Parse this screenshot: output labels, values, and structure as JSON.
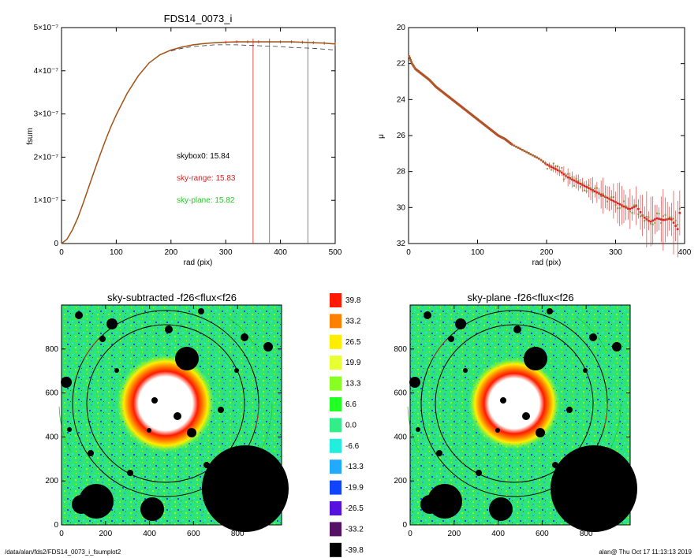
{
  "footer": {
    "path": "/data/alan/fds2/FDS14_0073_i_fsumplot2",
    "stamp": "alan@  Thu Oct 17 11:13:13 2019"
  },
  "colors": {
    "data_red": "#dd2222",
    "sky_plane_green": "#22cc22",
    "model_olive": "#7a8a22",
    "dashed_grey": "#333333",
    "mask_black": "#000000"
  },
  "chart_data": [
    {
      "id": "fsum",
      "type": "line",
      "title": "FDS14_0073_i",
      "xlabel": "rad (pix)",
      "ylabel": "fsum",
      "xlim": [
        0,
        500
      ],
      "ylim": [
        0,
        5e-07
      ],
      "xticks": [
        "0",
        "100",
        "200",
        "300",
        "400",
        "500"
      ],
      "yticks": [
        "0",
        "1×10⁻⁷",
        "2×10⁻⁷",
        "3×10⁻⁷",
        "4×10⁻⁷",
        "5×10⁻⁷"
      ],
      "vlines": [
        {
          "x": 350,
          "color": "#dd2222"
        },
        {
          "x": 380,
          "color": "#666666"
        },
        {
          "x": 450,
          "color": "#666666"
        }
      ],
      "annotations": [
        {
          "text": "skybox0: 15.84",
          "color": "#000000"
        },
        {
          "text": "sky-range: 15.83",
          "color": "#dd2222"
        },
        {
          "text": "sky-plane: 15.82",
          "color": "#22cc22"
        }
      ],
      "series": [
        {
          "style": "solid",
          "x": [
            0,
            10,
            20,
            30,
            40,
            50,
            60,
            70,
            80,
            90,
            100,
            120,
            140,
            160,
            180,
            200,
            220,
            240,
            260,
            280,
            300,
            320,
            340,
            360,
            380,
            400,
            420,
            440,
            460,
            480,
            500
          ],
          "y": [
            0,
            1e-08,
            3.2e-08,
            6e-08,
            9.5e-08,
            1.32e-07,
            1.68e-07,
            2.04e-07,
            2.38e-07,
            2.7e-07,
            2.98e-07,
            3.48e-07,
            3.88e-07,
            4.18e-07,
            4.37e-07,
            4.48e-07,
            4.55e-07,
            4.6e-07,
            4.63e-07,
            4.65e-07,
            4.66e-07,
            4.67e-07,
            4.67e-07,
            4.67e-07,
            4.67e-07,
            4.67e-07,
            4.67e-07,
            4.66e-07,
            4.65e-07,
            4.64e-07,
            4.62e-07
          ]
        },
        {
          "style": "dashed",
          "x": [
            200,
            220,
            240,
            260,
            280,
            300,
            320,
            340,
            360,
            380,
            400,
            420,
            440,
            460,
            480,
            500
          ],
          "y": [
            4.46e-07,
            4.52e-07,
            4.56e-07,
            4.58e-07,
            4.6e-07,
            4.6e-07,
            4.6e-07,
            4.59e-07,
            4.58e-07,
            4.57e-07,
            4.56e-07,
            4.54e-07,
            4.53e-07,
            4.52e-07,
            4.5e-07,
            4.48e-07
          ]
        }
      ]
    },
    {
      "id": "mu",
      "type": "scatter",
      "xlabel": "rad (pix)",
      "ylabel": "μ",
      "xlim": [
        0,
        400
      ],
      "ylim": [
        32,
        20
      ],
      "xticks": [
        "0",
        "100",
        "200",
        "300",
        "400"
      ],
      "yticks": [
        "20",
        "22",
        "24",
        "26",
        "28",
        "30",
        "32"
      ],
      "profile": {
        "x": [
          0,
          5,
          10,
          20,
          30,
          40,
          50,
          60,
          70,
          80,
          90,
          100,
          110,
          120,
          130,
          140,
          150,
          160,
          170,
          180,
          190,
          200,
          210,
          220,
          230,
          240,
          250,
          260,
          270,
          280,
          290,
          300,
          310,
          320,
          330,
          340,
          350,
          360,
          370,
          380,
          390,
          395
        ],
        "y": [
          21.5,
          22.0,
          22.3,
          22.6,
          22.9,
          23.3,
          23.6,
          23.9,
          24.2,
          24.5,
          24.8,
          25.1,
          25.4,
          25.7,
          26.0,
          26.2,
          26.5,
          26.7,
          26.9,
          27.1,
          27.3,
          27.6,
          27.8,
          28.0,
          28.3,
          28.5,
          28.7,
          28.9,
          29.1,
          29.3,
          29.5,
          29.7,
          29.9,
          30.1,
          29.9,
          30.5,
          30.8,
          30.6,
          30.7,
          30.6,
          31.2,
          29.7
        ]
      }
    },
    {
      "id": "img_sub",
      "type": "heatmap",
      "title": "sky-subtracted -f26<flux<f26",
      "xlim": [
        0,
        1000
      ],
      "ylim": [
        0,
        1000
      ],
      "xticks": [
        "0",
        "200",
        "400",
        "600",
        "800"
      ],
      "yticks": [
        "0",
        "200",
        "400",
        "600",
        "800"
      ]
    },
    {
      "id": "img_plane",
      "type": "heatmap",
      "title": "sky-plane -f26<flux<f26",
      "xlim": [
        0,
        1000
      ],
      "ylim": [
        0,
        1000
      ],
      "xticks": [
        "0",
        "200",
        "400",
        "600",
        "800"
      ],
      "yticks": [
        "0",
        "200",
        "400",
        "600",
        "800"
      ]
    }
  ],
  "colorbar": {
    "labels": [
      "39.8",
      "33.2",
      "26.5",
      "19.9",
      "13.3",
      "6.6",
      "0.0",
      "-6.6",
      "-13.3",
      "-19.9",
      "-26.5",
      "-33.2",
      "-39.8"
    ],
    "colors": [
      "#ff1a00",
      "#ff7f00",
      "#ffee00",
      "#e8ff33",
      "#88ff22",
      "#22ff22",
      "#33ee88",
      "#22eedd",
      "#22aaff",
      "#1144ff",
      "#5511dd",
      "#551166",
      "#000000"
    ]
  }
}
